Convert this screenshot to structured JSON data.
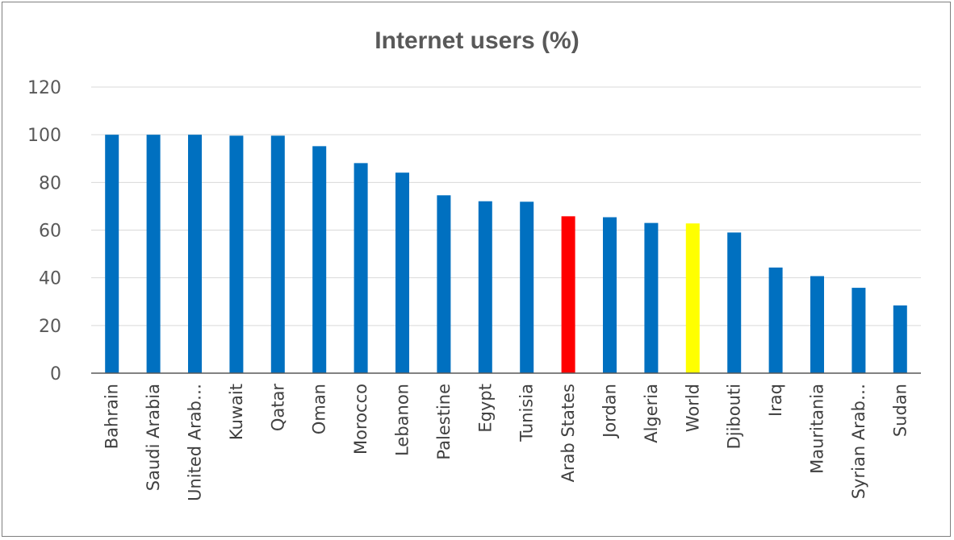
{
  "chart_data": {
    "type": "bar",
    "title": "Internet users (%)",
    "xlabel": "",
    "ylabel": "",
    "ylim": [
      0,
      120
    ],
    "yticks": [
      0,
      20,
      40,
      60,
      80,
      100,
      120
    ],
    "grid": true,
    "legend": "none",
    "categories": [
      "Bahrain",
      "Saudi Arabia",
      "United Arab…",
      "Kuwait",
      "Qatar",
      "Oman",
      "Morocco",
      "Lebanon",
      "Palestine",
      "Egypt",
      "Tunisia",
      "Arab States",
      "Jordan",
      "Algeria",
      "World",
      "Djibouti",
      "Iraq",
      "Mauritania",
      "Syrian Arab…",
      "Sudan"
    ],
    "values": [
      100,
      100,
      100,
      99.6,
      99.6,
      95.2,
      88.1,
      84.1,
      74.6,
      72.1,
      71.9,
      65.8,
      65.4,
      63,
      62.8,
      59,
      44.3,
      40.7,
      35.8,
      28.4
    ],
    "colors": {
      "default": "#0070c0",
      "highlight": {
        "Arab States": "#ff0000",
        "World": "#ffff00"
      }
    }
  }
}
